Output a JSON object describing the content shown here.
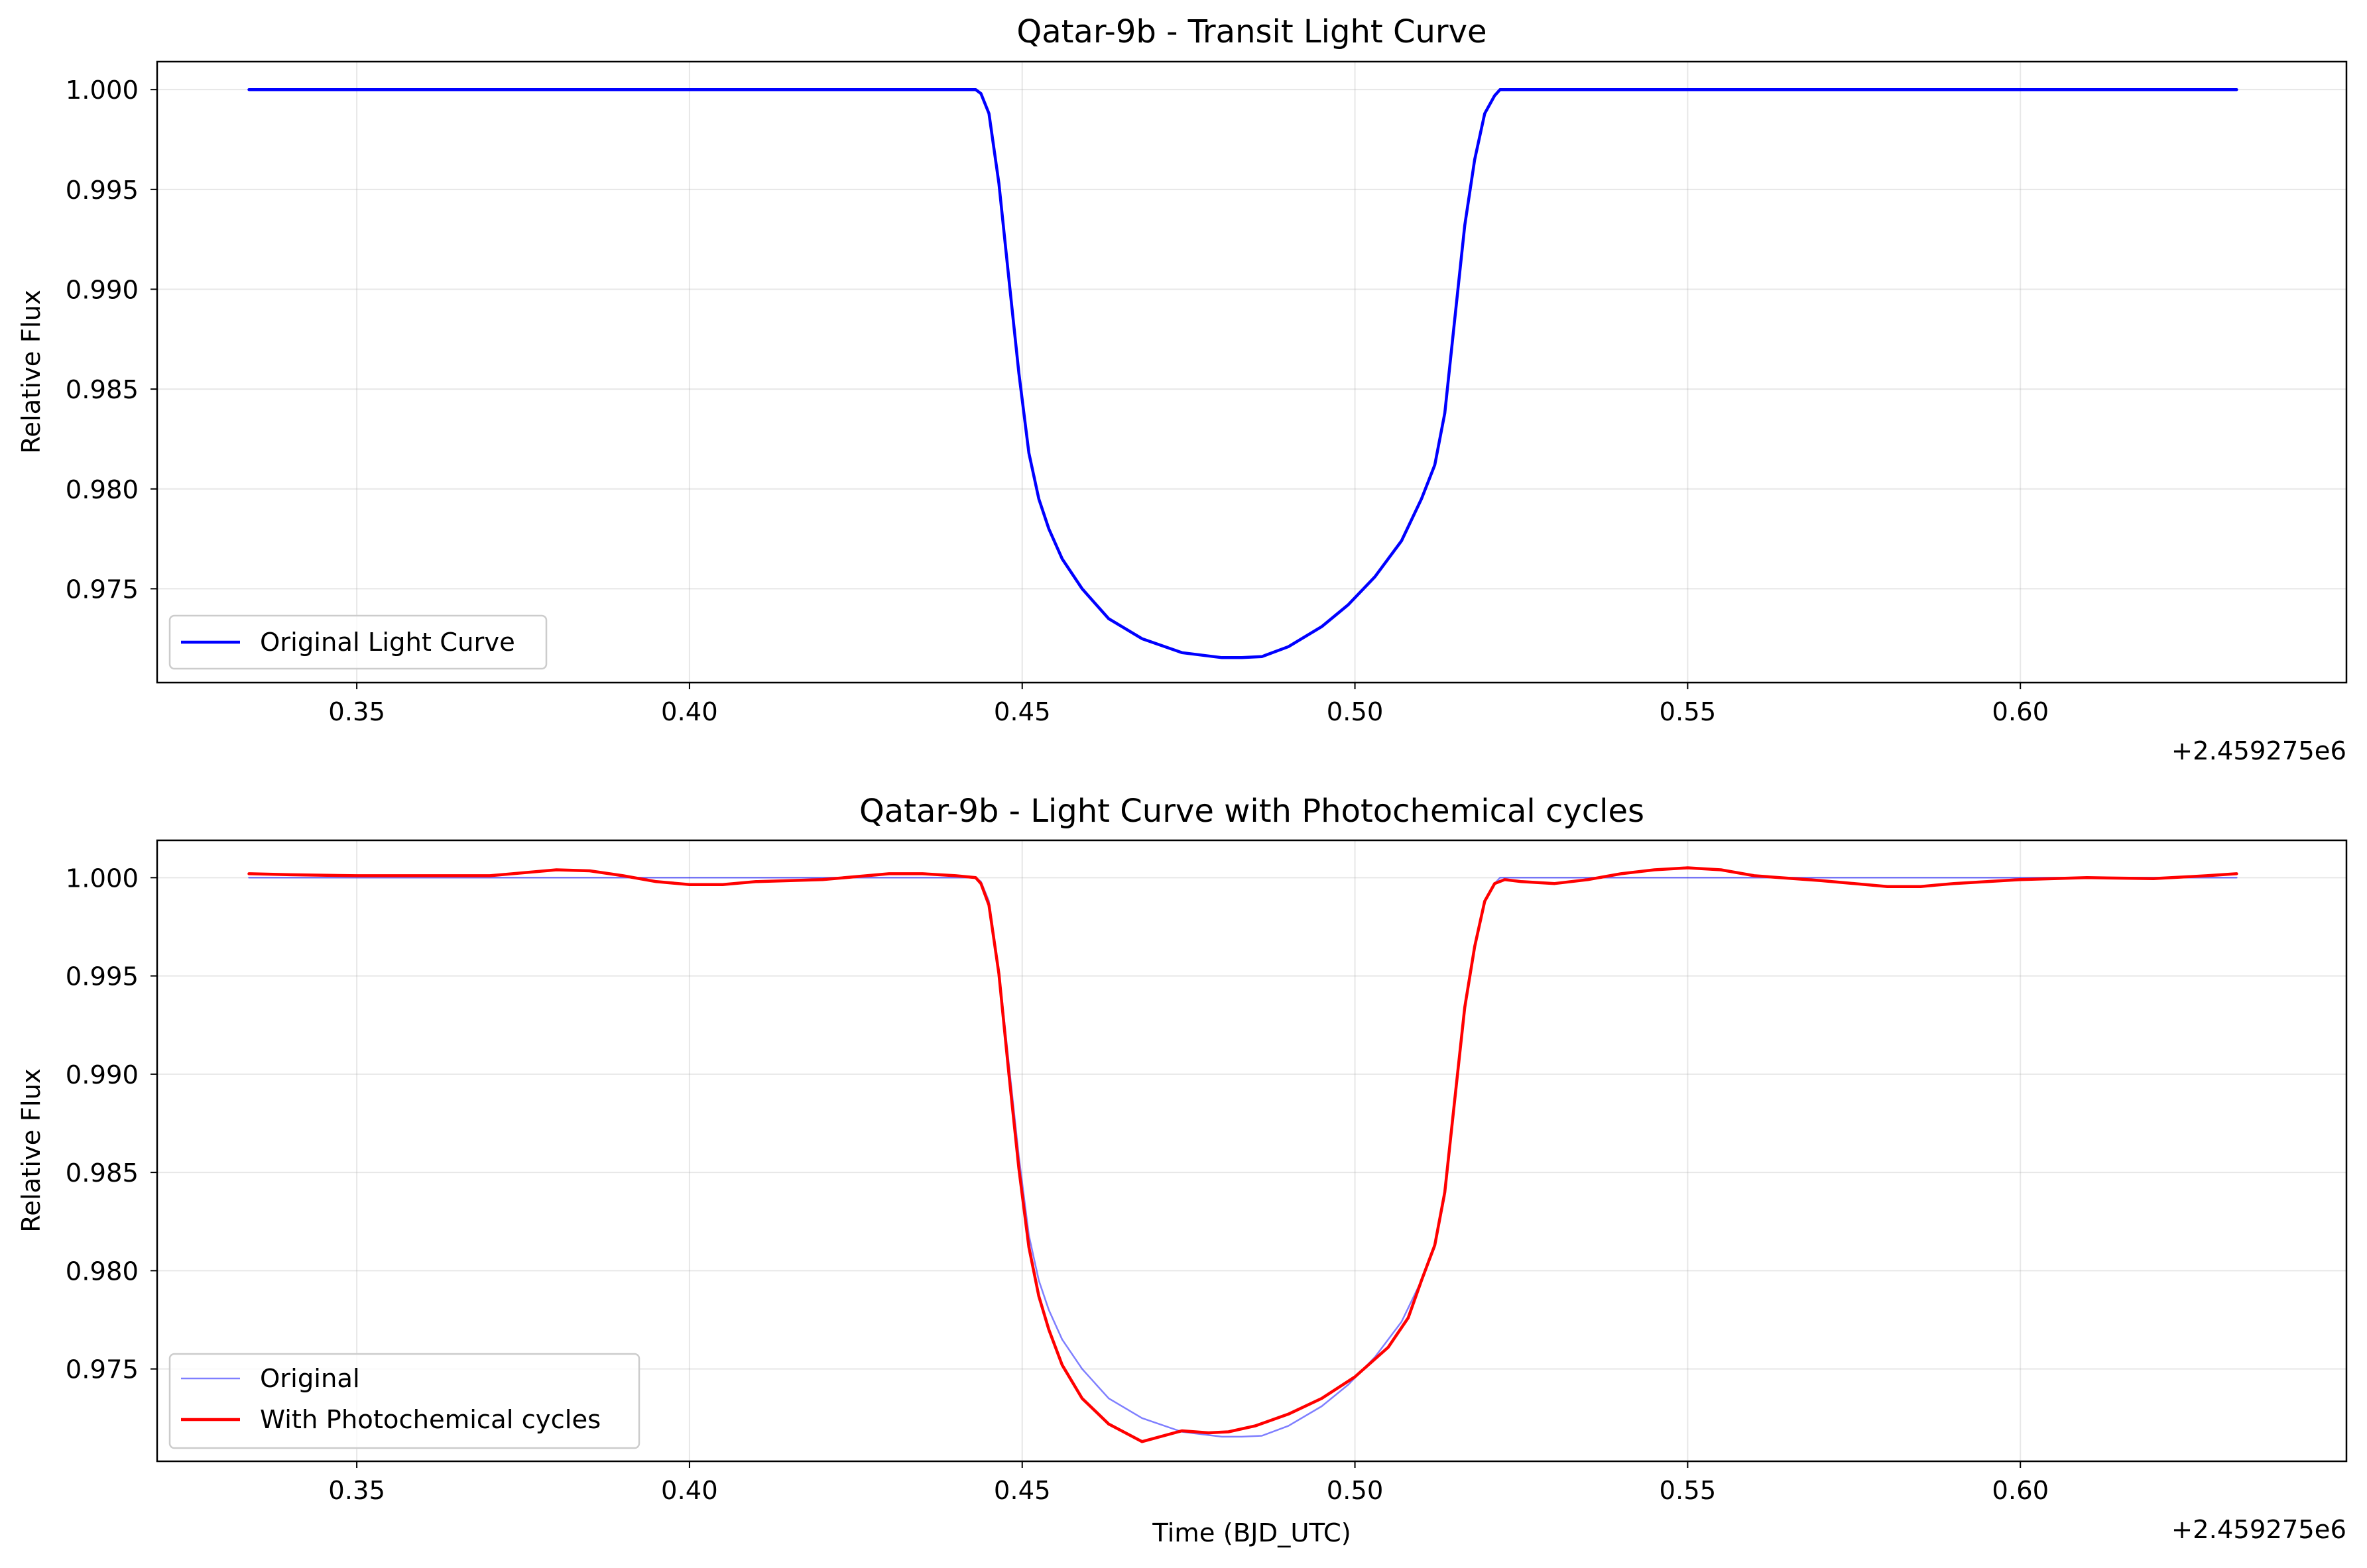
{
  "chart_data": [
    {
      "type": "line",
      "title": "Qatar-9b - Transit Light Curve",
      "xlabel": "",
      "ylabel": "Relative Flux",
      "x_offset_label": "+2.459275e6",
      "x_offset": 2459275,
      "xlim": [
        0.32,
        0.649
      ],
      "ylim": [
        0.9703,
        1.0014
      ],
      "xticks": [
        0.35,
        0.4,
        0.45,
        0.5,
        0.55,
        0.6
      ],
      "xtick_labels": [
        "0.35",
        "0.40",
        "0.45",
        "0.50",
        "0.55",
        "0.60"
      ],
      "yticks": [
        0.975,
        0.98,
        0.985,
        0.99,
        0.995,
        1.0
      ],
      "ytick_labels": [
        "0.975",
        "0.980",
        "0.985",
        "0.990",
        "0.995",
        "1.000"
      ],
      "grid": true,
      "legend_position": "lower-left",
      "series": [
        {
          "name": "Original Light Curve",
          "color": "#0000ff",
          "line_width": "thick",
          "x": [
            0.3338,
            0.35,
            0.4,
            0.443,
            0.4438,
            0.445,
            0.4465,
            0.448,
            0.4495,
            0.451,
            0.4525,
            0.454,
            0.456,
            0.459,
            0.463,
            0.468,
            0.474,
            0.48,
            0.483,
            0.486,
            0.49,
            0.495,
            0.499,
            0.503,
            0.507,
            0.51,
            0.512,
            0.5135,
            0.515,
            0.5165,
            0.518,
            0.5195,
            0.521,
            0.5218,
            0.523,
            0.55,
            0.6,
            0.6325
          ],
          "y": [
            1.0,
            1.0,
            1.0,
            1.0,
            0.9998,
            0.9988,
            0.9953,
            0.9905,
            0.9858,
            0.9818,
            0.9795,
            0.978,
            0.9765,
            0.975,
            0.9735,
            0.9725,
            0.9718,
            0.97155,
            0.97155,
            0.9716,
            0.9721,
            0.9731,
            0.9742,
            0.9756,
            0.9774,
            0.9795,
            0.9812,
            0.9838,
            0.9885,
            0.9932,
            0.9965,
            0.9988,
            0.9997,
            1.0,
            1.0,
            1.0,
            1.0,
            1.0
          ]
        }
      ]
    },
    {
      "type": "line",
      "title": "Qatar-9b - Light Curve with Photochemical cycles",
      "xlabel": "Time (BJD_UTC)",
      "ylabel": "Relative Flux",
      "x_offset_label": "+2.459275e6",
      "x_offset": 2459275,
      "xlim": [
        0.32,
        0.649
      ],
      "ylim": [
        0.9703,
        1.0019
      ],
      "xticks": [
        0.35,
        0.4,
        0.45,
        0.5,
        0.55,
        0.6
      ],
      "xtick_labels": [
        "0.35",
        "0.40",
        "0.45",
        "0.50",
        "0.55",
        "0.60"
      ],
      "yticks": [
        0.975,
        0.98,
        0.985,
        0.99,
        0.995,
        1.0
      ],
      "ytick_labels": [
        "0.975",
        "0.980",
        "0.985",
        "0.990",
        "0.995",
        "1.000"
      ],
      "grid": true,
      "legend_position": "lower-left",
      "series": [
        {
          "name": "Original",
          "color": "#0000ff",
          "opacity": 0.5,
          "line_width": "thin",
          "x": [
            0.3338,
            0.35,
            0.4,
            0.443,
            0.4438,
            0.445,
            0.4465,
            0.448,
            0.4495,
            0.451,
            0.4525,
            0.454,
            0.456,
            0.459,
            0.463,
            0.468,
            0.474,
            0.48,
            0.483,
            0.486,
            0.49,
            0.495,
            0.499,
            0.503,
            0.507,
            0.51,
            0.512,
            0.5135,
            0.515,
            0.5165,
            0.518,
            0.5195,
            0.521,
            0.5218,
            0.523,
            0.55,
            0.6,
            0.6325
          ],
          "y": [
            1.0,
            1.0,
            1.0,
            1.0,
            0.9998,
            0.9988,
            0.9953,
            0.9905,
            0.9858,
            0.9818,
            0.9795,
            0.978,
            0.9765,
            0.975,
            0.9735,
            0.9725,
            0.9718,
            0.97155,
            0.97155,
            0.9716,
            0.9721,
            0.9731,
            0.9742,
            0.9756,
            0.9774,
            0.9795,
            0.9812,
            0.9838,
            0.9885,
            0.9932,
            0.9965,
            0.9988,
            0.9997,
            1.0,
            1.0,
            1.0,
            1.0,
            1.0
          ]
        },
        {
          "name": "With Photochemical cycles",
          "color": "#ff0000",
          "line_width": "thick",
          "x": [
            0.3338,
            0.34,
            0.35,
            0.36,
            0.37,
            0.38,
            0.385,
            0.39,
            0.395,
            0.4,
            0.405,
            0.41,
            0.42,
            0.43,
            0.435,
            0.44,
            0.443,
            0.4438,
            0.445,
            0.4465,
            0.448,
            0.4495,
            0.451,
            0.4525,
            0.454,
            0.456,
            0.459,
            0.463,
            0.468,
            0.474,
            0.478,
            0.481,
            0.485,
            0.49,
            0.495,
            0.5,
            0.505,
            0.508,
            0.51,
            0.512,
            0.5135,
            0.515,
            0.5165,
            0.518,
            0.5195,
            0.521,
            0.5225,
            0.525,
            0.53,
            0.535,
            0.54,
            0.545,
            0.55,
            0.555,
            0.56,
            0.57,
            0.58,
            0.585,
            0.59,
            0.6,
            0.61,
            0.62,
            0.628,
            0.6325
          ],
          "y": [
            1.0002,
            1.00015,
            1.0001,
            1.0001,
            1.0001,
            1.0004,
            1.00035,
            1.0001,
            0.9998,
            0.99965,
            0.99965,
            0.9998,
            0.9999,
            1.0002,
            1.0002,
            1.0001,
            1.0,
            0.9997,
            0.9986,
            0.9951,
            0.99,
            0.9852,
            0.9812,
            0.9787,
            0.977,
            0.9752,
            0.9735,
            0.9722,
            0.9713,
            0.97185,
            0.97175,
            0.9718,
            0.9721,
            0.9727,
            0.9735,
            0.9746,
            0.9761,
            0.9776,
            0.9795,
            0.9813,
            0.984,
            0.9887,
            0.9934,
            0.9965,
            0.9988,
            0.9997,
            0.9999,
            0.9998,
            0.9997,
            0.9999,
            1.0002,
            1.0004,
            1.0005,
            1.0004,
            1.0001,
            0.99985,
            0.99955,
            0.99955,
            0.9997,
            0.9999,
            1.0,
            0.99995,
            1.0001,
            1.0002
          ]
        }
      ]
    }
  ]
}
